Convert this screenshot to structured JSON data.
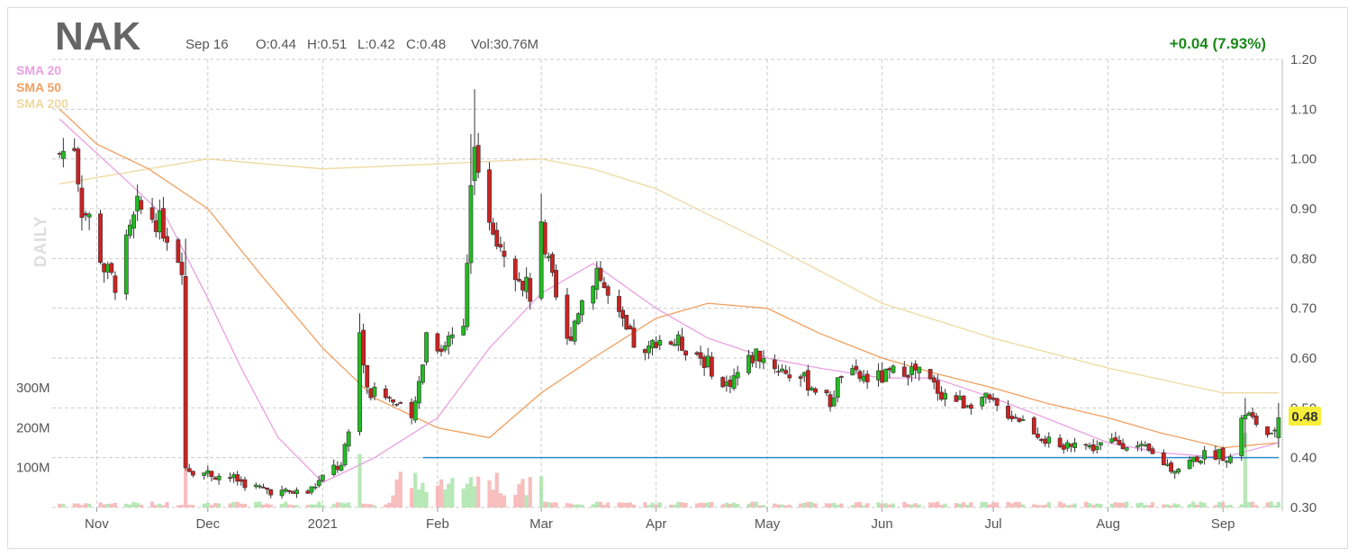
{
  "colors": {
    "up": "#22bb22",
    "down": "#cc2222",
    "sma20": "#e9a0e0",
    "sma50": "#f0a060",
    "sma200": "#efd9a0",
    "level_line": "#2a8bd0",
    "change": "#1a8a1a",
    "price_badge": "#f7ee3a"
  },
  "header": {
    "ticker": "NAK",
    "date": "Sep 16",
    "open": "O:0.44",
    "high": "H:0.51",
    "low": "L:0.42",
    "close": "C:0.48",
    "volume": "Vol:30.76M",
    "change": "+0.04 (7.93%)"
  },
  "legend": [
    "SMA 20",
    "SMA 50",
    "SMA 200"
  ],
  "current_price": "0.48",
  "chart_data": {
    "type": "candlestick",
    "timeframe": "DAILY",
    "title": "NAK",
    "ylim": [
      0.3,
      1.2
    ],
    "y_ticks": [
      "1.20",
      "1.10",
      "1.00",
      "0.90",
      "0.80",
      "0.70",
      "0.60",
      "0.50",
      "0.40",
      "0.30"
    ],
    "x_ticks": [
      "Nov",
      "Dec",
      "2021",
      "Feb",
      "Mar",
      "Apr",
      "May",
      "Jun",
      "Jul",
      "Aug",
      "Sep"
    ],
    "volume_ticks": [
      "300M",
      "200M",
      "100M"
    ],
    "horizontal_level": 0.4,
    "anchors": [
      [
        "2020-10-22",
        1.01
      ],
      [
        "2020-10-26",
        1.03
      ],
      [
        "2020-10-28",
        0.9
      ],
      [
        "2020-10-30",
        0.88
      ],
      [
        "2020-11-03",
        0.78
      ],
      [
        "2020-11-06",
        0.75
      ],
      [
        "2020-11-10",
        0.85
      ],
      [
        "2020-11-12",
        0.9
      ],
      [
        "2020-11-17",
        0.88
      ],
      [
        "2020-11-20",
        0.85
      ],
      [
        "2020-11-24",
        0.79
      ],
      [
        "2020-11-25",
        0.38
      ],
      [
        "2020-11-30",
        0.37
      ],
      [
        "2020-12-07",
        0.36
      ],
      [
        "2020-12-14",
        0.34
      ],
      [
        "2020-12-21",
        0.33
      ],
      [
        "2020-12-28",
        0.33
      ],
      [
        "2021-01-04",
        0.38
      ],
      [
        "2021-01-06",
        0.38
      ],
      [
        "2021-01-08",
        0.45
      ],
      [
        "2021-01-11",
        0.65
      ],
      [
        "2021-01-13",
        0.53
      ],
      [
        "2021-01-19",
        0.52
      ],
      [
        "2021-01-25",
        0.47
      ],
      [
        "2021-01-27",
        0.55
      ],
      [
        "2021-01-29",
        0.65
      ],
      [
        "2021-02-02",
        0.62
      ],
      [
        "2021-02-05",
        0.65
      ],
      [
        "2021-02-08",
        0.68
      ],
      [
        "2021-02-10",
        0.95
      ],
      [
        "2021-02-11",
        1.05
      ],
      [
        "2021-02-12",
        0.95
      ],
      [
        "2021-02-17",
        0.85
      ],
      [
        "2021-02-22",
        0.78
      ],
      [
        "2021-02-26",
        0.73
      ],
      [
        "2021-03-01",
        0.85
      ],
      [
        "2021-03-04",
        0.75
      ],
      [
        "2021-03-08",
        0.63
      ],
      [
        "2021-03-11",
        0.7
      ],
      [
        "2021-03-16",
        0.78
      ],
      [
        "2021-03-19",
        0.72
      ],
      [
        "2021-03-24",
        0.65
      ],
      [
        "2021-03-29",
        0.6
      ],
      [
        "2021-04-01",
        0.64
      ],
      [
        "2021-04-07",
        0.63
      ],
      [
        "2021-04-12",
        0.61
      ],
      [
        "2021-04-16",
        0.58
      ],
      [
        "2021-04-19",
        0.54
      ],
      [
        "2021-04-23",
        0.57
      ],
      [
        "2021-04-28",
        0.61
      ],
      [
        "2021-05-04",
        0.58
      ],
      [
        "2021-05-10",
        0.56
      ],
      [
        "2021-05-14",
        0.54
      ],
      [
        "2021-05-18",
        0.51
      ],
      [
        "2021-05-21",
        0.57
      ],
      [
        "2021-05-26",
        0.56
      ],
      [
        "2021-06-01",
        0.56
      ],
      [
        "2021-06-07",
        0.58
      ],
      [
        "2021-06-11",
        0.57
      ],
      [
        "2021-06-17",
        0.53
      ],
      [
        "2021-06-23",
        0.51
      ],
      [
        "2021-06-28",
        0.52
      ],
      [
        "2021-07-02",
        0.5
      ],
      [
        "2021-07-08",
        0.48
      ],
      [
        "2021-07-13",
        0.45
      ],
      [
        "2021-07-19",
        0.41
      ],
      [
        "2021-07-23",
        0.44
      ],
      [
        "2021-07-27",
        0.42
      ],
      [
        "2021-08-02",
        0.43
      ],
      [
        "2021-08-06",
        0.43
      ],
      [
        "2021-08-12",
        0.41
      ],
      [
        "2021-08-18",
        0.38
      ],
      [
        "2021-08-20",
        0.38
      ],
      [
        "2021-08-25",
        0.4
      ],
      [
        "2021-08-31",
        0.41
      ],
      [
        "2021-09-03",
        0.4
      ],
      [
        "2021-09-07",
        0.49
      ],
      [
        "2021-09-10",
        0.47
      ],
      [
        "2021-09-14",
        0.44
      ],
      [
        "2021-09-16",
        0.48
      ]
    ],
    "spikes": [
      [
        "2021-02-11",
        1.14,
        0.98
      ],
      [
        "2021-02-10",
        1.05,
        0.8
      ],
      [
        "2021-01-11",
        0.69,
        0.55
      ],
      [
        "2021-03-01",
        0.93,
        0.72
      ],
      [
        "2020-11-25",
        0.84,
        0.38
      ],
      [
        "2021-09-07",
        0.52,
        0.42
      ]
    ],
    "sma20": [
      [
        "2020-10-22",
        1.08
      ],
      [
        "2020-11-10",
        0.95
      ],
      [
        "2020-11-20",
        0.88
      ],
      [
        "2020-12-01",
        0.72
      ],
      [
        "2020-12-10",
        0.58
      ],
      [
        "2020-12-20",
        0.44
      ],
      [
        "2021-01-01",
        0.35
      ],
      [
        "2021-01-15",
        0.4
      ],
      [
        "2021-02-01",
        0.48
      ],
      [
        "2021-02-15",
        0.62
      ],
      [
        "2021-03-01",
        0.73
      ],
      [
        "2021-03-15",
        0.79
      ],
      [
        "2021-04-01",
        0.7
      ],
      [
        "2021-04-15",
        0.64
      ],
      [
        "2021-05-01",
        0.6
      ],
      [
        "2021-05-15",
        0.58
      ],
      [
        "2021-06-01",
        0.56
      ],
      [
        "2021-06-15",
        0.56
      ],
      [
        "2021-07-01",
        0.52
      ],
      [
        "2021-07-15",
        0.48
      ],
      [
        "2021-08-01",
        0.43
      ],
      [
        "2021-08-15",
        0.41
      ],
      [
        "2021-09-01",
        0.4
      ],
      [
        "2021-09-16",
        0.43
      ]
    ],
    "sma50": [
      [
        "2020-10-22",
        1.1
      ],
      [
        "2020-11-01",
        1.03
      ],
      [
        "2020-11-15",
        0.98
      ],
      [
        "2020-12-01",
        0.9
      ],
      [
        "2020-12-15",
        0.77
      ],
      [
        "2021-01-01",
        0.62
      ],
      [
        "2021-01-15",
        0.52
      ],
      [
        "2021-02-01",
        0.46
      ],
      [
        "2021-02-15",
        0.44
      ],
      [
        "2021-03-01",
        0.53
      ],
      [
        "2021-03-15",
        0.6
      ],
      [
        "2021-04-01",
        0.68
      ],
      [
        "2021-04-15",
        0.71
      ],
      [
        "2021-05-01",
        0.7
      ],
      [
        "2021-05-15",
        0.65
      ],
      [
        "2021-06-01",
        0.6
      ],
      [
        "2021-06-15",
        0.57
      ],
      [
        "2021-07-01",
        0.54
      ],
      [
        "2021-07-15",
        0.51
      ],
      [
        "2021-08-01",
        0.48
      ],
      [
        "2021-08-15",
        0.45
      ],
      [
        "2021-09-01",
        0.42
      ],
      [
        "2021-09-16",
        0.43
      ]
    ],
    "sma200": [
      [
        "2020-10-22",
        0.95
      ],
      [
        "2020-11-15",
        0.98
      ],
      [
        "2020-12-01",
        1.0
      ],
      [
        "2021-01-01",
        0.98
      ],
      [
        "2021-02-01",
        0.99
      ],
      [
        "2021-03-01",
        1.0
      ],
      [
        "2021-03-15",
        0.98
      ],
      [
        "2021-04-01",
        0.94
      ],
      [
        "2021-05-01",
        0.83
      ],
      [
        "2021-06-01",
        0.71
      ],
      [
        "2021-07-01",
        0.64
      ],
      [
        "2021-08-01",
        0.58
      ],
      [
        "2021-09-01",
        0.53
      ],
      [
        "2021-09-16",
        0.53
      ]
    ]
  }
}
